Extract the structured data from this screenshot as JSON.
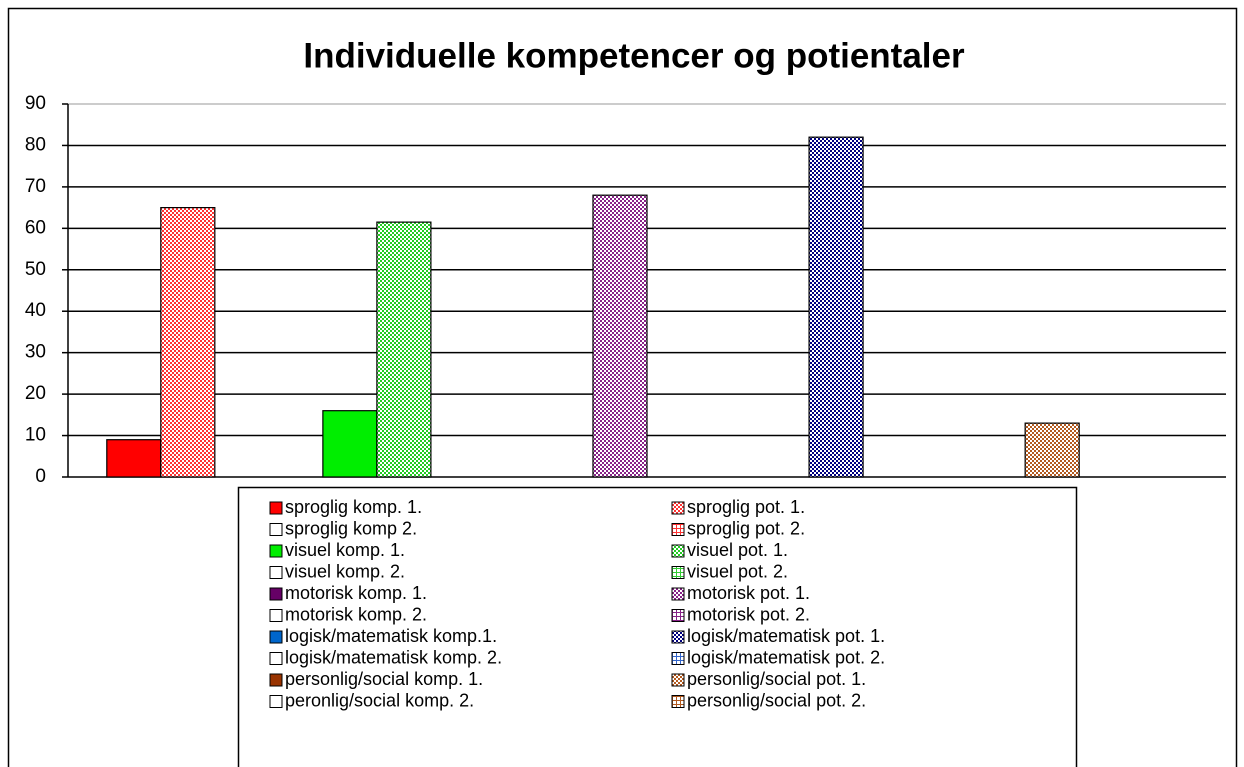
{
  "chart_data": {
    "type": "bar",
    "title": "Individuelle kompetencer og potientaler",
    "categories": [
      null
    ],
    "ylim": [
      0,
      90
    ],
    "yticks": [
      0,
      10,
      20,
      30,
      40,
      50,
      60,
      70,
      80,
      90
    ],
    "grid": true,
    "series": [
      {
        "name": "sproglig komp. 1.",
        "color": "#ff0000",
        "values": [
          9
        ]
      },
      {
        "name": "sproglig pot. 1.",
        "color": "#ff3333",
        "pattern": "dots",
        "values": [
          65
        ]
      },
      {
        "name": "sproglig komp 2.",
        "color": "#ffffff",
        "values": [
          null
        ]
      },
      {
        "name": "sproglig pot. 2.",
        "color": "#ff3333",
        "pattern": "grid",
        "values": [
          null
        ]
      },
      {
        "name": "visuel komp. 1.",
        "color": "#00ee00",
        "values": [
          16
        ]
      },
      {
        "name": "visuel pot. 1.",
        "color": "#22cc22",
        "pattern": "dots",
        "values": [
          61.5
        ]
      },
      {
        "name": "visuel komp. 2.",
        "color": "#ffffff",
        "values": [
          null
        ]
      },
      {
        "name": "visuel pot. 2.",
        "color": "#33cc33",
        "pattern": "grid",
        "values": [
          null
        ]
      },
      {
        "name": "motorisk komp. 1.",
        "color": "#660066",
        "values": [
          null
        ]
      },
      {
        "name": "motorisk pot. 1.",
        "color": "#882288",
        "pattern": "dots",
        "values": [
          68
        ]
      },
      {
        "name": "motorisk komp. 2.",
        "color": "#ffffff",
        "values": [
          null
        ]
      },
      {
        "name": "motorisk pot. 2.",
        "color": "#882288",
        "pattern": "grid",
        "values": [
          null
        ]
      },
      {
        "name": "logisk/matematisk komp.1.",
        "color": "#0066cc",
        "values": [
          null
        ]
      },
      {
        "name": "logisk/matematisk pot. 1.",
        "color": "#000080",
        "pattern": "dots",
        "values": [
          82
        ]
      },
      {
        "name": "logisk/matematisk komp. 2.",
        "color": "#ffffff",
        "values": [
          null
        ]
      },
      {
        "name": "logisk/matematisk pot. 2.",
        "color": "#3366cc",
        "pattern": "grid",
        "values": [
          null
        ]
      },
      {
        "name": "personlig/social komp. 1.",
        "color": "#993300",
        "values": [
          null
        ]
      },
      {
        "name": "personlig/social pot. 1.",
        "color": "#b35a1f",
        "pattern": "dots",
        "values": [
          13
        ]
      },
      {
        "name": "peronlig/social komp. 2.",
        "color": "#ffffff",
        "values": [
          null
        ]
      },
      {
        "name": "personlig/social pot. 2.",
        "color": "#b35a1f",
        "pattern": "grid",
        "values": [
          null
        ]
      }
    ]
  }
}
